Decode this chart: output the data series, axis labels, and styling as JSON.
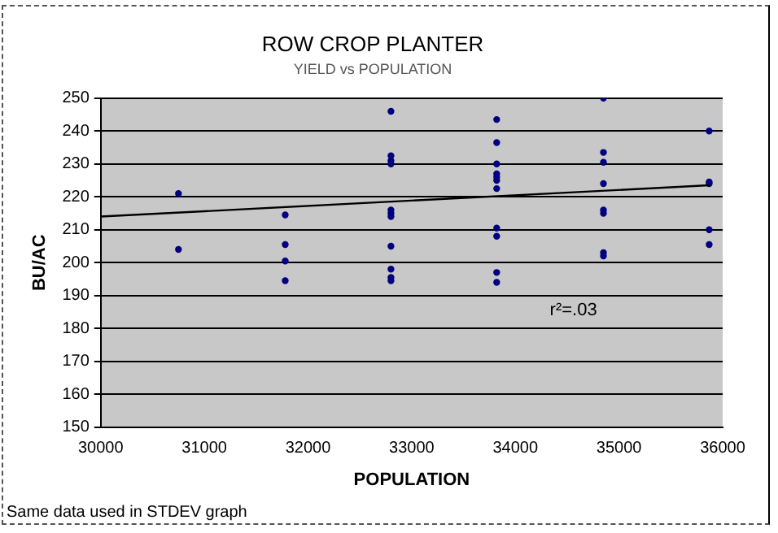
{
  "chart_data": {
    "type": "scatter",
    "title": "ROW CROP PLANTER",
    "subtitle": "YIELD vs POPULATION",
    "xlabel": "POPULATION",
    "ylabel": "BU/AC",
    "annotations": [
      "r²=.03",
      "Same data used in STDEV graph"
    ],
    "xlim": [
      30000,
      36000
    ],
    "xticks": [
      30000,
      31000,
      32000,
      33000,
      34000,
      35000,
      36000
    ],
    "ylim": [
      150,
      250
    ],
    "yticks": [
      150,
      160,
      170,
      180,
      190,
      200,
      210,
      220,
      230,
      240,
      250
    ],
    "grid": "y",
    "legend": false,
    "marker": "circle",
    "series": [
      {
        "color": "#000080",
        "x": [
          30750,
          30750,
          31780,
          31780,
          31780,
          31780,
          32800,
          32800,
          32800,
          32800,
          32800,
          32800,
          32800,
          32800,
          32800,
          32800,
          32800,
          33820,
          33820,
          33820,
          33820,
          33820,
          33820,
          33820,
          33820,
          33820,
          33820,
          33820,
          34850,
          34850,
          34850,
          34850,
          34850,
          34850,
          34850,
          34850,
          35870,
          35870,
          35870,
          35870,
          35870
        ],
        "values": [
          221,
          204,
          214.5,
          205.5,
          200.5,
          194.5,
          246,
          232.5,
          231,
          230,
          216,
          215,
          214,
          205,
          198,
          195.5,
          194.5,
          243.5,
          236.5,
          230,
          227,
          226,
          225,
          222.5,
          210.5,
          208,
          197,
          194,
          250,
          233.5,
          230.5,
          224,
          216,
          215,
          203,
          202,
          240,
          224.5,
          224,
          210,
          205.5
        ]
      },
      {
        "type": "line",
        "marker": "none",
        "color": "#000000",
        "x": [
          30000,
          35870
        ],
        "values": [
          214,
          223.5
        ]
      }
    ]
  }
}
